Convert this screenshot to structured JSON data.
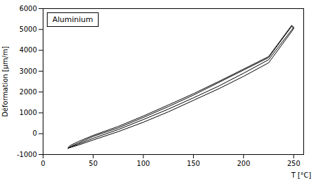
{
  "chart_data": {
    "type": "line",
    "xlabel": "T [°C]",
    "ylabel": "Déformation [μm/m]",
    "xlim": [
      0,
      260
    ],
    "ylim": [
      -1000,
      6000
    ],
    "xticks": [
      0,
      50,
      100,
      150,
      200,
      250
    ],
    "yticks": [
      -1000,
      0,
      1000,
      2000,
      3000,
      4000,
      5000,
      6000
    ],
    "legend": "upper left",
    "legend_title": "Aluminium",
    "series": [
      {
        "color": "black",
        "x": [
          25,
          26,
          28,
          35,
          50,
          75,
          100,
          125,
          150,
          175,
          200,
          225,
          248,
          250
        ],
        "values": [
          -700,
          -680,
          -650,
          -550,
          -300,
          100,
          550,
          1050,
          1600,
          2150,
          2750,
          3400,
          4900,
          5050
        ]
      },
      {
        "color": "black",
        "x": [
          250,
          248,
          225,
          200,
          175,
          150,
          125,
          100,
          75,
          50,
          35,
          28,
          26,
          25
        ],
        "values": [
          5050,
          5150,
          3650,
          3050,
          2450,
          1850,
          1300,
          780,
          280,
          -130,
          -450,
          -600,
          -660,
          -700
        ]
      },
      {
        "color": "black",
        "x": [
          25,
          26,
          28,
          35,
          50,
          75,
          100,
          125,
          150,
          175,
          200,
          225,
          248,
          250
        ],
        "values": [
          -700,
          -670,
          -630,
          -500,
          -220,
          200,
          680,
          1180,
          1720,
          2280,
          2900,
          3550,
          4980,
          5100
        ]
      },
      {
        "color": "black",
        "x": [
          250,
          248,
          225,
          200,
          175,
          150,
          125,
          100,
          75,
          50,
          35,
          28,
          26,
          25
        ],
        "values": [
          5100,
          5200,
          3700,
          3100,
          2500,
          1920,
          1380,
          850,
          350,
          -80,
          -380,
          -540,
          -610,
          -660
        ]
      }
    ]
  }
}
